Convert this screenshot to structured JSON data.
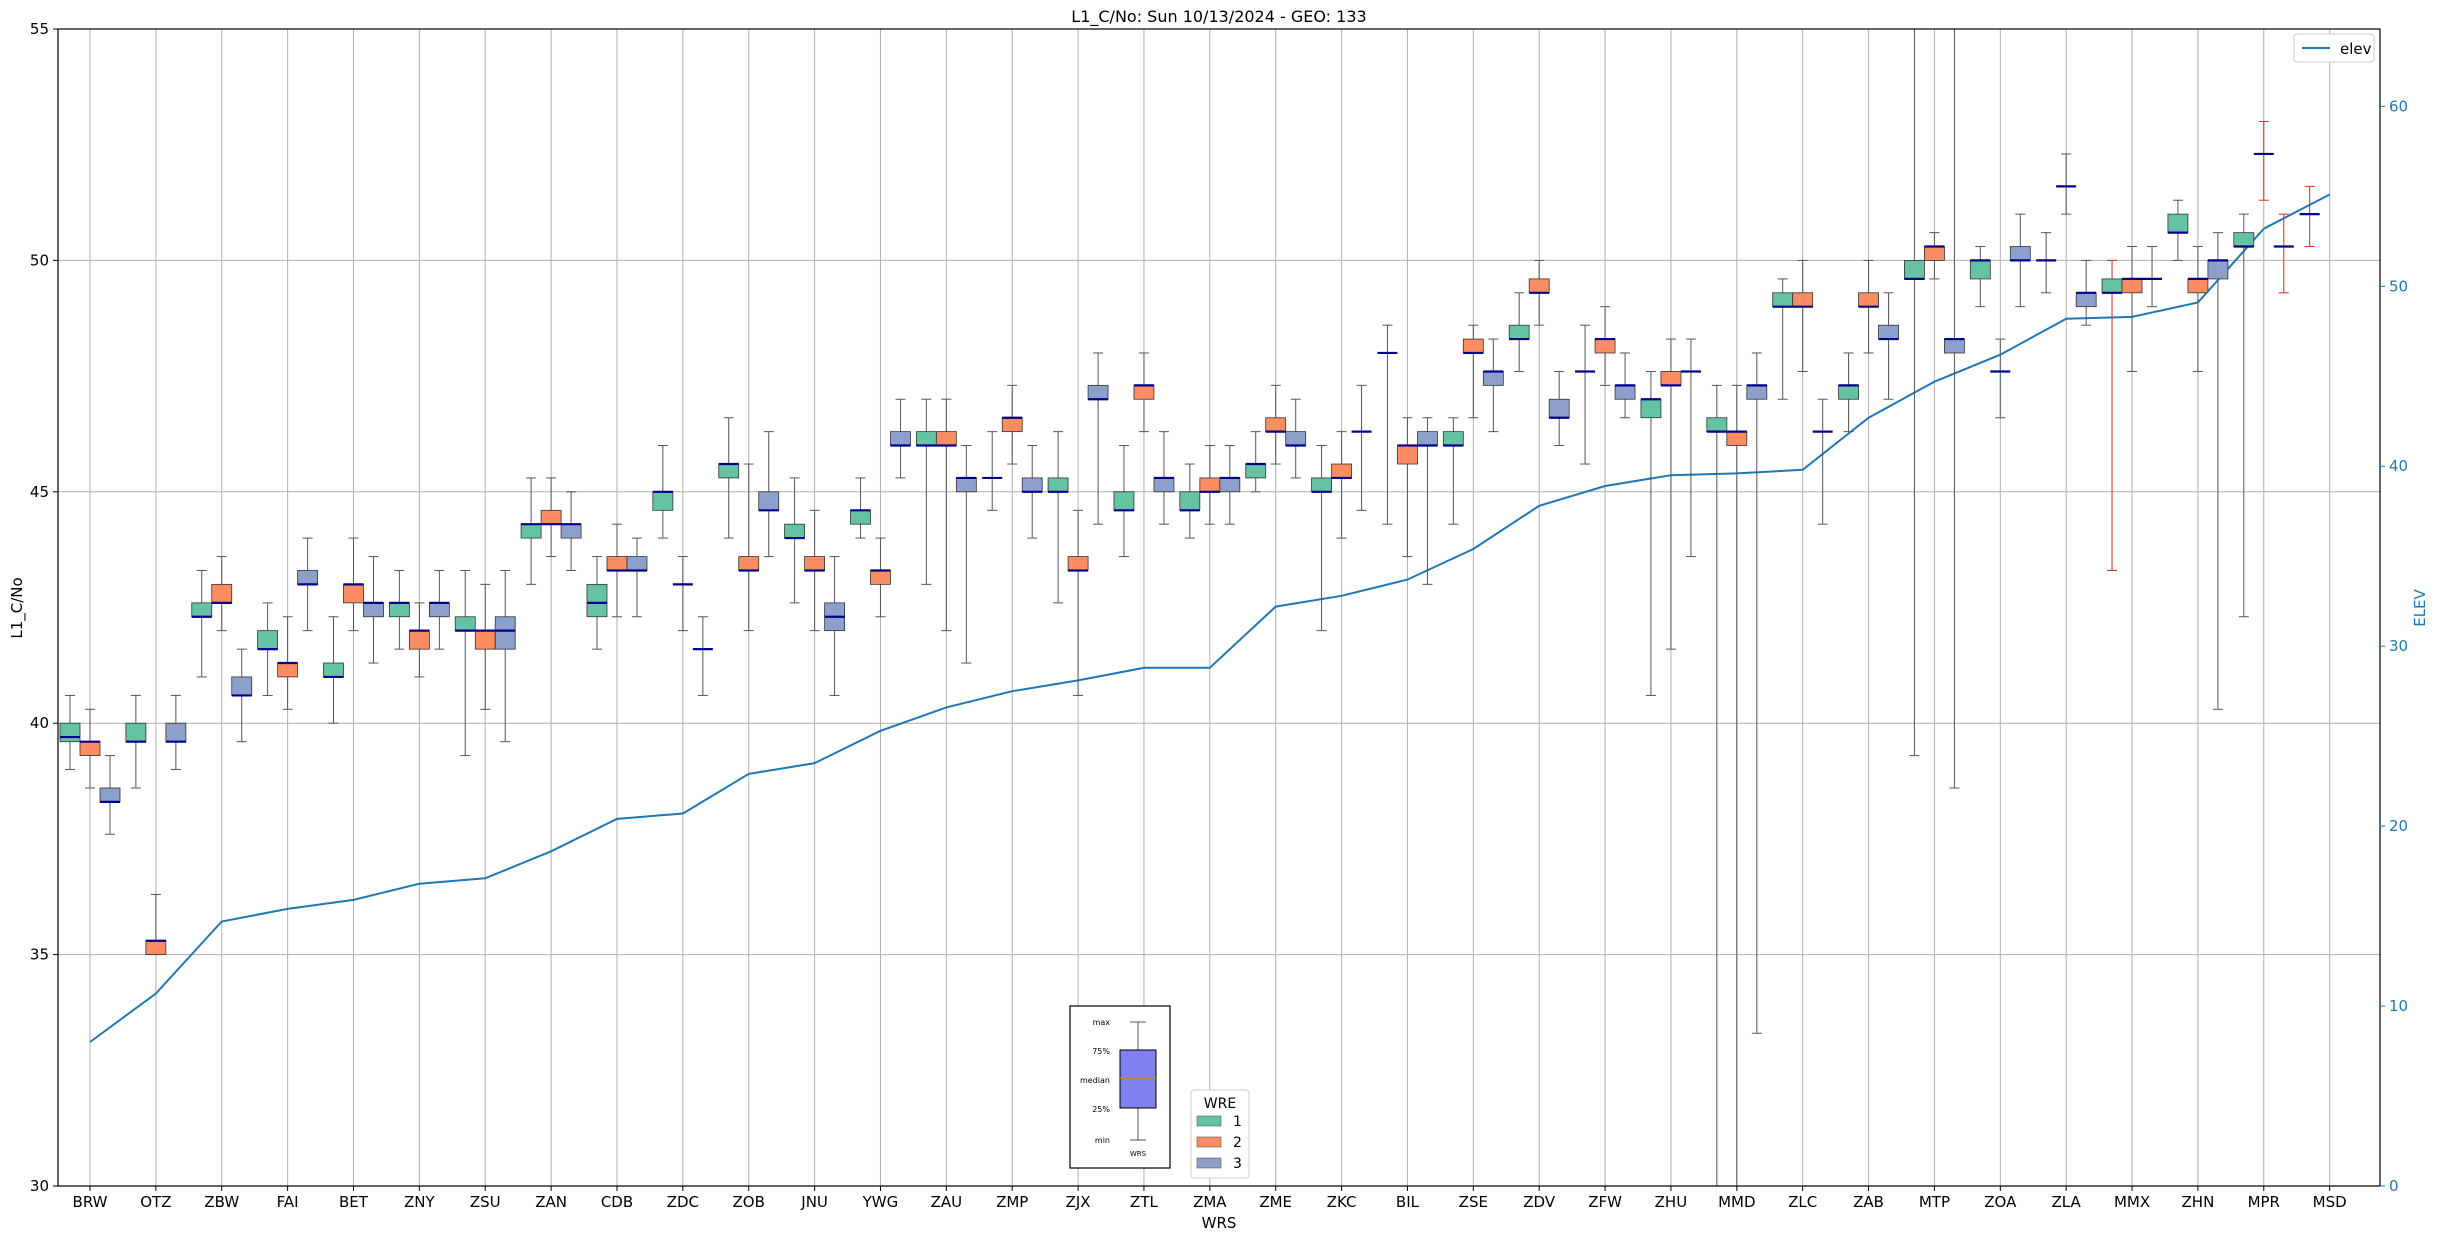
{
  "chart_data": {
    "type": "box",
    "title": "L1_C/No: Sun 10/13/2024 - GEO: 133",
    "xlabel": "WRS",
    "ylabel": "L1_C/No",
    "y2label": "ELEV",
    "ylim": [
      30,
      55
    ],
    "y2lim": [
      0,
      64.3
    ],
    "yticks": [
      "30",
      "35",
      "40",
      "45",
      "50",
      "55"
    ],
    "y2ticks": [
      "0",
      "10",
      "20",
      "30",
      "40",
      "50",
      "60"
    ],
    "grid": true,
    "categories": [
      "BRW",
      "OTZ",
      "ZBW",
      "FAI",
      "BET",
      "ZNY",
      "ZSU",
      "ZAN",
      "CDB",
      "ZDC",
      "ZOB",
      "JNU",
      "YWG",
      "ZAU",
      "ZMP",
      "ZJX",
      "ZTL",
      "ZMA",
      "ZME",
      "ZKC",
      "BIL",
      "ZSE",
      "ZDV",
      "ZFW",
      "ZHU",
      "MMD",
      "ZLC",
      "ZAB",
      "MTP",
      "ZOA",
      "ZLA",
      "MMX",
      "ZHN",
      "MPR",
      "MSD"
    ],
    "legend_wre": {
      "title": "WRE",
      "placement": "bottom-center",
      "entries": [
        {
          "label": "1",
          "color": "#66c2a5"
        },
        {
          "label": "2",
          "color": "#fc8d62"
        },
        {
          "label": "3",
          "color": "#8da0cb"
        }
      ]
    },
    "legend_elev": {
      "placement": "top-right",
      "label": "elev",
      "color": "#1f77b4"
    },
    "key_inset": {
      "labels": [
        "max",
        "75%",
        "median",
        "25%",
        "min"
      ],
      "xlabel": "WRS",
      "color": "#8080ee"
    },
    "colors": {
      "wre1": "#66c2a5",
      "wre2": "#fc8d62",
      "wre3": "#8da0cb",
      "median": "#00008b",
      "whisker": "#555555",
      "outlier_whisker": "#d62728",
      "elev": "#1f77b4"
    },
    "boxes": [
      {
        "site": "BRW",
        "wre": 1,
        "min": 39.0,
        "q1": 39.6,
        "med": 39.7,
        "q3": 40.0,
        "max": 40.6
      },
      {
        "site": "BRW",
        "wre": 2,
        "min": 38.6,
        "q1": 39.3,
        "med": 39.6,
        "q3": 39.6,
        "max": 40.3
      },
      {
        "site": "BRW",
        "wre": 3,
        "min": 37.6,
        "q1": 38.3,
        "med": 38.3,
        "q3": 38.6,
        "max": 39.3
      },
      {
        "site": "OTZ",
        "wre": 1,
        "min": 38.6,
        "q1": 39.6,
        "med": 39.6,
        "q3": 40.0,
        "max": 40.6
      },
      {
        "site": "OTZ",
        "wre": 2,
        "min": 35.0,
        "q1": 35.0,
        "med": 35.3,
        "q3": 35.3,
        "max": 36.3
      },
      {
        "site": "OTZ",
        "wre": 3,
        "min": 39.0,
        "q1": 39.6,
        "med": 39.6,
        "q3": 40.0,
        "max": 40.6
      },
      {
        "site": "ZBW",
        "wre": 1,
        "min": 41.0,
        "q1": 42.3,
        "med": 42.3,
        "q3": 42.6,
        "max": 43.3
      },
      {
        "site": "ZBW",
        "wre": 2,
        "min": 42.0,
        "q1": 42.6,
        "med": 42.6,
        "q3": 43.0,
        "max": 43.6
      },
      {
        "site": "ZBW",
        "wre": 3,
        "min": 39.6,
        "q1": 40.6,
        "med": 40.6,
        "q3": 41.0,
        "max": 41.6
      },
      {
        "site": "FAI",
        "wre": 1,
        "min": 40.6,
        "q1": 41.6,
        "med": 41.6,
        "q3": 42.0,
        "max": 42.6
      },
      {
        "site": "FAI",
        "wre": 2,
        "min": 40.3,
        "q1": 41.0,
        "med": 41.3,
        "q3": 41.3,
        "max": 42.3
      },
      {
        "site": "FAI",
        "wre": 3,
        "min": 42.0,
        "q1": 43.0,
        "med": 43.0,
        "q3": 43.3,
        "max": 44.0
      },
      {
        "site": "BET",
        "wre": 1,
        "min": 40.0,
        "q1": 41.0,
        "med": 41.0,
        "q3": 41.3,
        "max": 42.3
      },
      {
        "site": "BET",
        "wre": 2,
        "min": 42.0,
        "q1": 42.6,
        "med": 43.0,
        "q3": 43.0,
        "max": 44.0
      },
      {
        "site": "BET",
        "wre": 3,
        "min": 41.3,
        "q1": 42.3,
        "med": 42.6,
        "q3": 42.6,
        "max": 43.6
      },
      {
        "site": "ZNY",
        "wre": 1,
        "min": 41.6,
        "q1": 42.3,
        "med": 42.6,
        "q3": 42.6,
        "max": 43.3
      },
      {
        "site": "ZNY",
        "wre": 2,
        "min": 41.0,
        "q1": 41.6,
        "med": 42.0,
        "q3": 42.0,
        "max": 42.6
      },
      {
        "site": "ZNY",
        "wre": 3,
        "min": 41.6,
        "q1": 42.3,
        "med": 42.6,
        "q3": 42.6,
        "max": 43.3
      },
      {
        "site": "ZSU",
        "wre": 1,
        "min": 39.3,
        "q1": 42.0,
        "med": 42.0,
        "q3": 42.3,
        "max": 43.3
      },
      {
        "site": "ZSU",
        "wre": 2,
        "min": 40.3,
        "q1": 41.6,
        "med": 42.0,
        "q3": 42.0,
        "max": 43.0
      },
      {
        "site": "ZSU",
        "wre": 3,
        "min": 39.6,
        "q1": 41.6,
        "med": 42.0,
        "q3": 42.3,
        "max": 43.3
      },
      {
        "site": "ZAN",
        "wre": 1,
        "min": 43.0,
        "q1": 44.0,
        "med": 44.3,
        "q3": 44.3,
        "max": 45.3
      },
      {
        "site": "ZAN",
        "wre": 2,
        "min": 43.6,
        "q1": 44.3,
        "med": 44.3,
        "q3": 44.6,
        "max": 45.3
      },
      {
        "site": "ZAN",
        "wre": 3,
        "min": 43.3,
        "q1": 44.0,
        "med": 44.3,
        "q3": 44.3,
        "max": 45.0
      },
      {
        "site": "CDB",
        "wre": 1,
        "min": 41.6,
        "q1": 42.3,
        "med": 42.6,
        "q3": 43.0,
        "max": 43.6
      },
      {
        "site": "CDB",
        "wre": 2,
        "min": 42.3,
        "q1": 43.3,
        "med": 43.3,
        "q3": 43.6,
        "max": 44.3
      },
      {
        "site": "CDB",
        "wre": 3,
        "min": 42.3,
        "q1": 43.3,
        "med": 43.3,
        "q3": 43.6,
        "max": 44.0
      },
      {
        "site": "ZDC",
        "wre": 1,
        "min": 44.0,
        "q1": 44.6,
        "med": 45.0,
        "q3": 45.0,
        "max": 46.0
      },
      {
        "site": "ZDC",
        "wre": 2,
        "min": 42.0,
        "q1": 43.0,
        "med": 43.0,
        "q3": 43.0,
        "max": 43.6
      },
      {
        "site": "ZDC",
        "wre": 3,
        "min": 40.6,
        "q1": 41.6,
        "med": 41.6,
        "q3": 41.6,
        "max": 42.3
      },
      {
        "site": "ZOB",
        "wre": 1,
        "min": 44.0,
        "q1": 45.3,
        "med": 45.6,
        "q3": 45.6,
        "max": 46.6
      },
      {
        "site": "ZOB",
        "wre": 2,
        "min": 42.0,
        "q1": 43.3,
        "med": 43.3,
        "q3": 43.6,
        "max": 45.6
      },
      {
        "site": "ZOB",
        "wre": 3,
        "min": 43.6,
        "q1": 44.6,
        "med": 44.6,
        "q3": 45.0,
        "max": 46.3
      },
      {
        "site": "JNU",
        "wre": 1,
        "min": 42.6,
        "q1": 44.0,
        "med": 44.0,
        "q3": 44.3,
        "max": 45.3
      },
      {
        "site": "JNU",
        "wre": 2,
        "min": 42.0,
        "q1": 43.3,
        "med": 43.3,
        "q3": 43.6,
        "max": 44.6
      },
      {
        "site": "JNU",
        "wre": 3,
        "min": 40.6,
        "q1": 42.0,
        "med": 42.3,
        "q3": 42.6,
        "max": 43.6
      },
      {
        "site": "YWG",
        "wre": 1,
        "min": 44.0,
        "q1": 44.3,
        "med": 44.6,
        "q3": 44.6,
        "max": 45.3
      },
      {
        "site": "YWG",
        "wre": 2,
        "min": 42.3,
        "q1": 43.0,
        "med": 43.3,
        "q3": 43.3,
        "max": 44.0
      },
      {
        "site": "YWG",
        "wre": 3,
        "min": 45.3,
        "q1": 46.0,
        "med": 46.0,
        "q3": 46.3,
        "max": 47.0
      },
      {
        "site": "ZAU",
        "wre": 1,
        "min": 43.0,
        "q1": 46.0,
        "med": 46.0,
        "q3": 46.3,
        "max": 47.0
      },
      {
        "site": "ZAU",
        "wre": 2,
        "min": 42.0,
        "q1": 46.0,
        "med": 46.0,
        "q3": 46.3,
        "max": 47.0
      },
      {
        "site": "ZAU",
        "wre": 3,
        "min": 41.3,
        "q1": 45.0,
        "med": 45.3,
        "q3": 45.3,
        "max": 46.0
      },
      {
        "site": "ZMP",
        "wre": 1,
        "min": 44.6,
        "q1": 45.3,
        "med": 45.3,
        "q3": 45.3,
        "max": 46.3
      },
      {
        "site": "ZMP",
        "wre": 2,
        "min": 45.6,
        "q1": 46.3,
        "med": 46.6,
        "q3": 46.6,
        "max": 47.3
      },
      {
        "site": "ZMP",
        "wre": 3,
        "min": 44.0,
        "q1": 45.0,
        "med": 45.0,
        "q3": 45.3,
        "max": 46.0
      },
      {
        "site": "ZJX",
        "wre": 1,
        "min": 42.6,
        "q1": 45.0,
        "med": 45.0,
        "q3": 45.3,
        "max": 46.3
      },
      {
        "site": "ZJX",
        "wre": 2,
        "min": 40.6,
        "q1": 43.3,
        "med": 43.3,
        "q3": 43.6,
        "max": 44.6
      },
      {
        "site": "ZJX",
        "wre": 3,
        "min": 44.3,
        "q1": 47.0,
        "med": 47.0,
        "q3": 47.3,
        "max": 48.0
      },
      {
        "site": "ZTL",
        "wre": 1,
        "min": 43.6,
        "q1": 44.6,
        "med": 44.6,
        "q3": 45.0,
        "max": 46.0
      },
      {
        "site": "ZTL",
        "wre": 2,
        "min": 46.3,
        "q1": 47.0,
        "med": 47.3,
        "q3": 47.3,
        "max": 48.0
      },
      {
        "site": "ZTL",
        "wre": 3,
        "min": 44.3,
        "q1": 45.0,
        "med": 45.3,
        "q3": 45.3,
        "max": 46.3
      },
      {
        "site": "ZMA",
        "wre": 1,
        "min": 44.0,
        "q1": 44.6,
        "med": 44.6,
        "q3": 45.0,
        "max": 45.6
      },
      {
        "site": "ZMA",
        "wre": 2,
        "min": 44.3,
        "q1": 45.0,
        "med": 45.0,
        "q3": 45.3,
        "max": 46.0
      },
      {
        "site": "ZMA",
        "wre": 3,
        "min": 44.3,
        "q1": 45.0,
        "med": 45.3,
        "q3": 45.3,
        "max": 46.0
      },
      {
        "site": "ZME",
        "wre": 1,
        "min": 45.0,
        "q1": 45.3,
        "med": 45.6,
        "q3": 45.6,
        "max": 46.3
      },
      {
        "site": "ZME",
        "wre": 2,
        "min": 45.6,
        "q1": 46.3,
        "med": 46.3,
        "q3": 46.6,
        "max": 47.3
      },
      {
        "site": "ZME",
        "wre": 3,
        "min": 45.3,
        "q1": 46.0,
        "med": 46.0,
        "q3": 46.3,
        "max": 47.0
      },
      {
        "site": "ZKC",
        "wre": 1,
        "min": 42.0,
        "q1": 45.0,
        "med": 45.0,
        "q3": 45.3,
        "max": 46.0
      },
      {
        "site": "ZKC",
        "wre": 2,
        "min": 44.0,
        "q1": 45.3,
        "med": 45.3,
        "q3": 45.6,
        "max": 46.3
      },
      {
        "site": "ZKC",
        "wre": 3,
        "min": 44.6,
        "q1": 46.3,
        "med": 46.3,
        "q3": 46.3,
        "max": 47.3
      },
      {
        "site": "BIL",
        "wre": 1,
        "min": 44.3,
        "q1": 48.0,
        "med": 48.0,
        "q3": 48.0,
        "max": 48.6
      },
      {
        "site": "BIL",
        "wre": 2,
        "min": 43.6,
        "q1": 45.6,
        "med": 46.0,
        "q3": 46.0,
        "max": 46.6
      },
      {
        "site": "BIL",
        "wre": 3,
        "min": 43.0,
        "q1": 46.0,
        "med": 46.0,
        "q3": 46.3,
        "max": 46.6
      },
      {
        "site": "ZSE",
        "wre": 1,
        "min": 44.3,
        "q1": 46.0,
        "med": 46.0,
        "q3": 46.3,
        "max": 46.6
      },
      {
        "site": "ZSE",
        "wre": 2,
        "min": 46.6,
        "q1": 48.0,
        "med": 48.0,
        "q3": 48.3,
        "max": 48.6
      },
      {
        "site": "ZSE",
        "wre": 3,
        "min": 46.3,
        "q1": 47.3,
        "med": 47.6,
        "q3": 47.6,
        "max": 48.3
      },
      {
        "site": "ZDV",
        "wre": 1,
        "min": 47.6,
        "q1": 48.3,
        "med": 48.3,
        "q3": 48.6,
        "max": 49.3
      },
      {
        "site": "ZDV",
        "wre": 2,
        "min": 48.6,
        "q1": 49.3,
        "med": 49.3,
        "q3": 49.6,
        "max": 50.0
      },
      {
        "site": "ZDV",
        "wre": 3,
        "min": 46.0,
        "q1": 46.6,
        "med": 46.6,
        "q3": 47.0,
        "max": 47.6
      },
      {
        "site": "ZFW",
        "wre": 1,
        "min": 45.6,
        "q1": 47.6,
        "med": 47.6,
        "q3": 47.6,
        "max": 48.6
      },
      {
        "site": "ZFW",
        "wre": 2,
        "min": 47.3,
        "q1": 48.0,
        "med": 48.3,
        "q3": 48.3,
        "max": 49.0
      },
      {
        "site": "ZFW",
        "wre": 3,
        "min": 46.6,
        "q1": 47.0,
        "med": 47.3,
        "q3": 47.3,
        "max": 48.0
      },
      {
        "site": "ZHU",
        "wre": 1,
        "min": 40.6,
        "q1": 46.6,
        "med": 47.0,
        "q3": 47.0,
        "max": 47.6
      },
      {
        "site": "ZHU",
        "wre": 2,
        "min": 41.6,
        "q1": 47.3,
        "med": 47.3,
        "q3": 47.6,
        "max": 48.3
      },
      {
        "site": "ZHU",
        "wre": 3,
        "min": 43.6,
        "q1": 47.6,
        "med": 47.6,
        "q3": 47.6,
        "max": 48.3
      },
      {
        "site": "MMD",
        "wre": 1,
        "min": 30.0,
        "q1": 46.3,
        "med": 46.3,
        "q3": 46.6,
        "max": 47.3
      },
      {
        "site": "MMD",
        "wre": 2,
        "min": 30.0,
        "q1": 46.0,
        "med": 46.3,
        "q3": 46.3,
        "max": 47.3
      },
      {
        "site": "MMD",
        "wre": 3,
        "min": 33.3,
        "q1": 47.0,
        "med": 47.3,
        "q3": 47.3,
        "max": 48.0
      },
      {
        "site": "ZLC",
        "wre": 1,
        "min": 47.0,
        "q1": 49.0,
        "med": 49.0,
        "q3": 49.3,
        "max": 49.6
      },
      {
        "site": "ZLC",
        "wre": 2,
        "min": 47.6,
        "q1": 49.0,
        "med": 49.0,
        "q3": 49.3,
        "max": 50.0
      },
      {
        "site": "ZLC",
        "wre": 3,
        "min": 44.3,
        "q1": 46.3,
        "med": 46.3,
        "q3": 46.3,
        "max": 47.0
      },
      {
        "site": "ZAB",
        "wre": 1,
        "min": 46.3,
        "q1": 47.0,
        "med": 47.3,
        "q3": 47.3,
        "max": 48.0
      },
      {
        "site": "ZAB",
        "wre": 2,
        "min": 48.0,
        "q1": 49.0,
        "med": 49.0,
        "q3": 49.3,
        "max": 50.0
      },
      {
        "site": "ZAB",
        "wre": 3,
        "min": 47.0,
        "q1": 48.3,
        "med": 48.3,
        "q3": 48.6,
        "max": 49.3
      },
      {
        "site": "MTP",
        "wre": 1,
        "min": 39.3,
        "q1": 49.6,
        "med": 49.6,
        "q3": 50.0,
        "max": 55.0
      },
      {
        "site": "MTP",
        "wre": 2,
        "min": 49.6,
        "q1": 50.0,
        "med": 50.3,
        "q3": 50.3,
        "max": 50.6
      },
      {
        "site": "MTP",
        "wre": 3,
        "min": 38.6,
        "q1": 48.0,
        "med": 48.3,
        "q3": 48.3,
        "max": 55.0
      },
      {
        "site": "ZOA",
        "wre": 1,
        "min": 49.0,
        "q1": 49.6,
        "med": 50.0,
        "q3": 50.0,
        "max": 50.3
      },
      {
        "site": "ZOA",
        "wre": 2,
        "min": 46.6,
        "q1": 47.6,
        "med": 47.6,
        "q3": 47.6,
        "max": 48.3
      },
      {
        "site": "ZOA",
        "wre": 3,
        "min": 49.0,
        "q1": 50.0,
        "med": 50.0,
        "q3": 50.3,
        "max": 51.0
      },
      {
        "site": "ZLA",
        "wre": 1,
        "min": 49.3,
        "q1": 50.0,
        "med": 50.0,
        "q3": 50.0,
        "max": 50.6
      },
      {
        "site": "ZLA",
        "wre": 2,
        "min": 51.0,
        "q1": 51.6,
        "med": 51.6,
        "q3": 51.6,
        "max": 52.3
      },
      {
        "site": "ZLA",
        "wre": 3,
        "min": 48.6,
        "q1": 49.0,
        "med": 49.3,
        "q3": 49.3,
        "max": 50.0
      },
      {
        "site": "MMX",
        "wre": 1,
        "min": 43.3,
        "q1": 49.3,
        "med": 49.3,
        "q3": 49.6,
        "max": 50.0,
        "outlier": true
      },
      {
        "site": "MMX",
        "wre": 2,
        "min": 47.6,
        "q1": 49.3,
        "med": 49.6,
        "q3": 49.6,
        "max": 50.3
      },
      {
        "site": "MMX",
        "wre": 3,
        "min": 49.0,
        "q1": 49.6,
        "med": 49.6,
        "q3": 49.6,
        "max": 50.3
      },
      {
        "site": "ZHN",
        "wre": 1,
        "min": 50.0,
        "q1": 50.6,
        "med": 50.6,
        "q3": 51.0,
        "max": 51.3
      },
      {
        "site": "ZHN",
        "wre": 2,
        "min": 47.6,
        "q1": 49.3,
        "med": 49.6,
        "q3": 49.6,
        "max": 50.3
      },
      {
        "site": "ZHN",
        "wre": 3,
        "min": 40.3,
        "q1": 49.6,
        "med": 50.0,
        "q3": 50.0,
        "max": 50.6
      },
      {
        "site": "MPR",
        "wre": 1,
        "min": 42.3,
        "q1": 50.3,
        "med": 50.3,
        "q3": 50.6,
        "max": 51.0
      },
      {
        "site": "MPR",
        "wre": 2,
        "min": 51.3,
        "q1": 52.3,
        "med": 52.3,
        "q3": 52.3,
        "max": 53.0,
        "outlier": true
      },
      {
        "site": "MPR",
        "wre": 3,
        "min": 49.3,
        "q1": 50.3,
        "med": 50.3,
        "q3": 50.3,
        "max": 51.0,
        "outlier": true
      },
      {
        "site": "MSD",
        "wre": 1,
        "min": 50.3,
        "q1": 51.0,
        "med": 51.0,
        "q3": 51.0,
        "max": 51.6,
        "outlier": true
      }
    ],
    "elev": {
      "name": "elev",
      "x": [
        "BRW",
        "OTZ",
        "ZBW",
        "FAI",
        "BET",
        "ZNY",
        "ZSU",
        "ZAN",
        "CDB",
        "ZDC",
        "ZOB",
        "JNU",
        "YWG",
        "ZAU",
        "ZMP",
        "ZJX",
        "ZTL",
        "ZMA",
        "ZME",
        "ZKC",
        "BIL",
        "ZSE",
        "ZDV",
        "ZFW",
        "ZHU",
        "MMD",
        "ZLC",
        "ZAB",
        "MTP",
        "ZOA",
        "ZLA",
        "MMX",
        "ZHN",
        "MPR",
        "MSD"
      ],
      "values": [
        8.0,
        10.7,
        14.7,
        15.4,
        15.9,
        16.8,
        17.1,
        18.6,
        20.4,
        20.7,
        22.9,
        23.5,
        25.3,
        26.6,
        27.5,
        28.1,
        28.8,
        28.8,
        32.2,
        32.8,
        33.7,
        35.4,
        37.8,
        38.9,
        39.5,
        39.6,
        39.8,
        42.7,
        44.7,
        46.2,
        48.2,
        48.3,
        49.1,
        53.2,
        55.1
      ]
    }
  }
}
